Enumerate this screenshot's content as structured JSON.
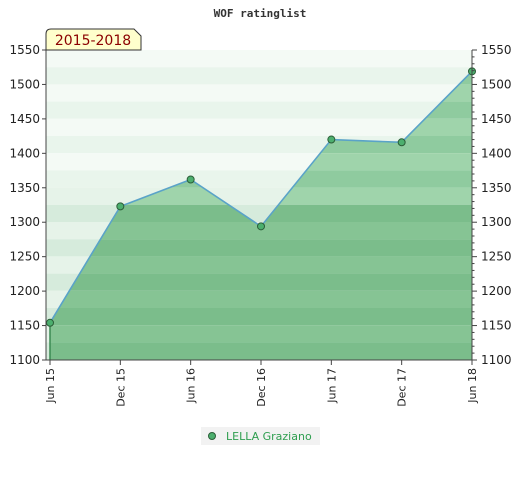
{
  "chart_data": {
    "type": "area",
    "title": "WOF ratinglist",
    "period": "2015-2018",
    "categories": [
      "Jun 15",
      "Dec 15",
      "Jun 16",
      "Dec 16",
      "Jun 17",
      "Dec 17",
      "Jun 18"
    ],
    "x_ticks": [
      "Jun 15",
      "Dec 15",
      "Jun 16",
      "Dec 16",
      "Jun 17",
      "Dec 17",
      "Jun 18"
    ],
    "y_ticks": [
      1100,
      1150,
      1200,
      1250,
      1300,
      1350,
      1400,
      1450,
      1500,
      1550
    ],
    "ylim": [
      1100,
      1550
    ],
    "series": [
      {
        "name": "LELLA Graziano",
        "values": [
          1154,
          1323,
          1362,
          1294,
          1420,
          1416,
          1519
        ]
      }
    ],
    "legend": "bottom-center",
    "grid": true,
    "colors": {
      "line": "#5aa3c8",
      "marker": "#4caf6e",
      "legend_text": "#2e9e4f",
      "badge_bg": "#ffffcc",
      "badge_text": "#8b0000"
    }
  }
}
